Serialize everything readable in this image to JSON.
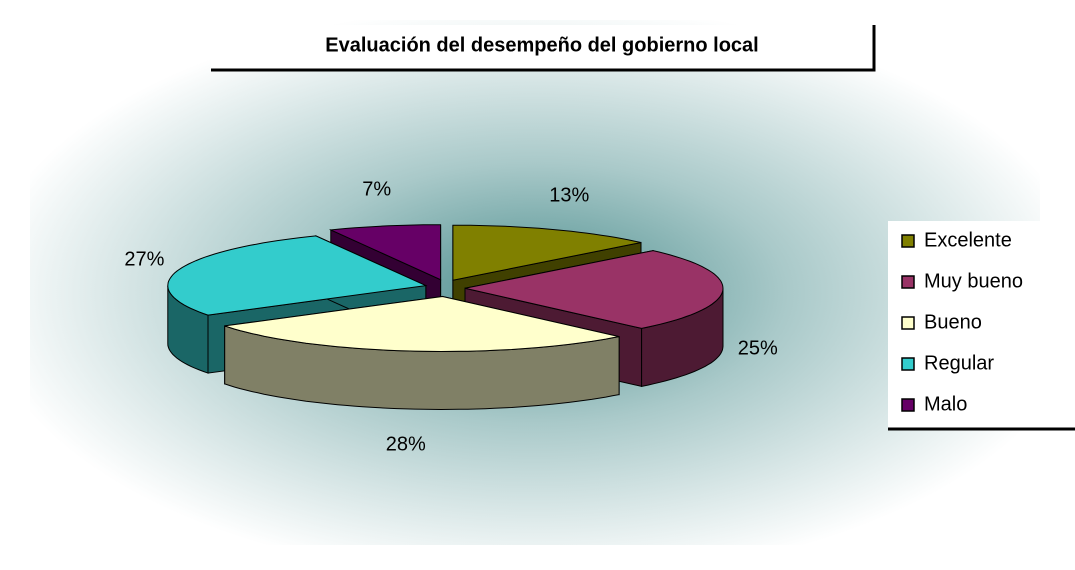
{
  "chart_data": {
    "type": "pie",
    "title": "Evaluación del desempeño del gobierno local",
    "categories": [
      "Excelente",
      "Muy bueno",
      "Bueno",
      "Regular",
      "Malo"
    ],
    "values": [
      13,
      25,
      28,
      27,
      7
    ],
    "value_labels": [
      "13%",
      "25%",
      "28%",
      "27%",
      "7%"
    ],
    "colors": [
      "#808000",
      "#993366",
      "#ffffcc",
      "#33cccc",
      "#660066"
    ],
    "legend": "right"
  }
}
